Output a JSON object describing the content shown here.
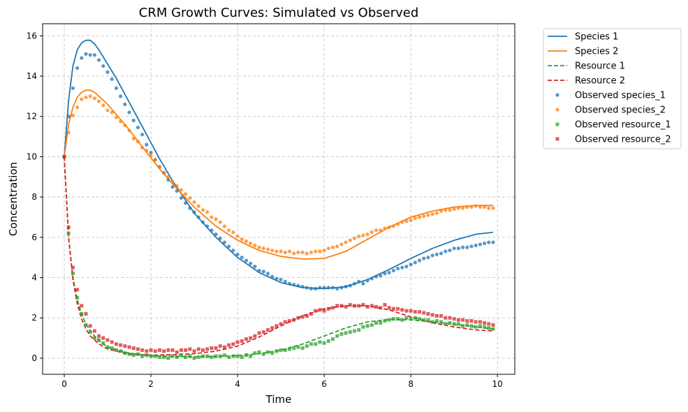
{
  "chart_data": {
    "type": "line",
    "title": "CRM Growth Curves: Simulated vs Observed",
    "xlabel": "Time",
    "ylabel": "Concentration",
    "xlim": [
      -0.5,
      10.4
    ],
    "ylim": [
      -0.8,
      16.6
    ],
    "xticks": [
      0,
      2,
      4,
      6,
      8,
      10
    ],
    "yticks": [
      0,
      2,
      4,
      6,
      8,
      10,
      12,
      14,
      16
    ],
    "grid": true,
    "legend_position": "outside-top-right",
    "series": [
      {
        "name": "Species 1",
        "kind": "line",
        "style": "solid",
        "color": "#1f77b4",
        "x": [
          0,
          0.1,
          0.2,
          0.3,
          0.4,
          0.5,
          0.6,
          0.7,
          0.8,
          1.0,
          1.2,
          1.4,
          1.6,
          1.8,
          2.0,
          2.2,
          2.5,
          3.0,
          3.5,
          4.0,
          4.5,
          5.0,
          5.5,
          6.0,
          6.5,
          7.0,
          7.5,
          8.0,
          8.5,
          9.0,
          9.5,
          9.9
        ],
        "y": [
          10,
          12.8,
          14.5,
          15.3,
          15.65,
          15.78,
          15.78,
          15.6,
          15.3,
          14.6,
          13.9,
          13.1,
          12.3,
          11.5,
          10.7,
          9.9,
          8.8,
          7.2,
          6.0,
          5.0,
          4.25,
          3.75,
          3.5,
          3.45,
          3.55,
          3.9,
          4.4,
          4.95,
          5.45,
          5.85,
          6.15,
          6.25
        ]
      },
      {
        "name": "Species 2",
        "kind": "line",
        "style": "solid",
        "color": "#ff7f0e",
        "x": [
          0,
          0.1,
          0.2,
          0.3,
          0.4,
          0.5,
          0.6,
          0.7,
          0.8,
          1.0,
          1.2,
          1.4,
          1.6,
          1.8,
          2.0,
          2.2,
          2.5,
          3.0,
          3.5,
          4.0,
          4.5,
          5.0,
          5.5,
          6.0,
          6.5,
          7.0,
          7.5,
          8.0,
          8.5,
          9.0,
          9.5,
          9.9
        ],
        "y": [
          10,
          11.6,
          12.45,
          12.95,
          13.2,
          13.3,
          13.3,
          13.2,
          13.0,
          12.6,
          12.1,
          11.6,
          11.05,
          10.5,
          9.95,
          9.4,
          8.65,
          7.5,
          6.55,
          5.85,
          5.35,
          5.05,
          4.92,
          4.95,
          5.3,
          5.9,
          6.5,
          7.0,
          7.3,
          7.5,
          7.58,
          7.58
        ]
      },
      {
        "name": "Resource 1",
        "kind": "line",
        "style": "dashed",
        "color": "#2ca02c",
        "x": [
          0,
          0.1,
          0.2,
          0.3,
          0.4,
          0.5,
          0.6,
          0.8,
          1.0,
          1.5,
          2.0,
          2.5,
          3.0,
          3.5,
          4.0,
          4.5,
          5.0,
          5.5,
          6.0,
          6.5,
          7.0,
          7.5,
          8.0,
          8.5,
          9.0,
          9.5,
          9.9
        ],
        "y": [
          10,
          6.0,
          4.0,
          2.9,
          2.2,
          1.7,
          1.35,
          0.85,
          0.55,
          0.25,
          0.12,
          0.08,
          0.07,
          0.08,
          0.13,
          0.22,
          0.4,
          0.7,
          1.1,
          1.5,
          1.8,
          1.92,
          1.9,
          1.8,
          1.68,
          1.55,
          1.45
        ]
      },
      {
        "name": "Resource 2",
        "kind": "line",
        "style": "dashed",
        "color": "#d62728",
        "x": [
          0,
          0.1,
          0.2,
          0.3,
          0.4,
          0.5,
          0.6,
          0.8,
          1.0,
          1.5,
          2.0,
          2.5,
          3.0,
          3.5,
          4.0,
          4.5,
          5.0,
          5.5,
          6.0,
          6.5,
          7.0,
          7.5,
          8.0,
          8.5,
          9.0,
          9.5,
          9.9
        ],
        "y": [
          10,
          6.0,
          3.9,
          2.7,
          1.95,
          1.45,
          1.1,
          0.7,
          0.45,
          0.2,
          0.15,
          0.17,
          0.22,
          0.35,
          0.6,
          1.05,
          1.6,
          2.1,
          2.45,
          2.6,
          2.6,
          2.4,
          2.05,
          1.75,
          1.55,
          1.4,
          1.35
        ]
      },
      {
        "name": "Observed species_1",
        "kind": "scatter",
        "marker": "circle",
        "color": "#1f77b4",
        "x": [
          0,
          0.1,
          0.2,
          0.3,
          0.4,
          0.5,
          0.6,
          0.7,
          0.8,
          0.9,
          1.0,
          1.1,
          1.2,
          1.3,
          1.4,
          1.5,
          1.6,
          1.7,
          1.8,
          1.9,
          2.0,
          2.1,
          2.2,
          2.3,
          2.4,
          2.5,
          2.6,
          2.7,
          2.8,
          2.9,
          3.0,
          3.1,
          3.2,
          3.3,
          3.4,
          3.5,
          3.6,
          3.7,
          3.8,
          3.9,
          4.0,
          4.1,
          4.2,
          4.3,
          4.4,
          4.5,
          4.6,
          4.7,
          4.8,
          4.9,
          5.0,
          5.1,
          5.2,
          5.3,
          5.4,
          5.5,
          5.6,
          5.7,
          5.8,
          5.9,
          6.0,
          6.1,
          6.2,
          6.3,
          6.4,
          6.5,
          6.6,
          6.7,
          6.8,
          6.9,
          7.0,
          7.1,
          7.2,
          7.3,
          7.4,
          7.5,
          7.6,
          7.7,
          7.8,
          7.9,
          8.0,
          8.1,
          8.2,
          8.3,
          8.4,
          8.5,
          8.6,
          8.7,
          8.8,
          8.9,
          9.0,
          9.1,
          9.2,
          9.3,
          9.4,
          9.5,
          9.6,
          9.7,
          9.8,
          9.9
        ],
        "y": [
          10.0,
          12.0,
          13.4,
          14.4,
          14.9,
          15.1,
          15.05,
          15.05,
          14.8,
          14.5,
          14.2,
          13.85,
          13.4,
          13.0,
          12.6,
          12.2,
          11.8,
          11.45,
          11.1,
          10.6,
          10.2,
          9.85,
          9.5,
          9.2,
          8.85,
          8.5,
          8.3,
          7.95,
          7.7,
          7.45,
          7.25,
          7.0,
          6.75,
          6.55,
          6.35,
          6.15,
          5.95,
          5.75,
          5.55,
          5.35,
          5.15,
          5.0,
          4.85,
          4.7,
          4.55,
          4.35,
          4.3,
          4.2,
          4.05,
          3.95,
          3.9,
          3.8,
          3.7,
          3.65,
          3.6,
          3.55,
          3.5,
          3.45,
          3.45,
          3.5,
          3.5,
          3.5,
          3.5,
          3.45,
          3.5,
          3.55,
          3.6,
          3.7,
          3.8,
          3.7,
          3.85,
          3.95,
          4.05,
          4.1,
          4.2,
          4.25,
          4.35,
          4.45,
          4.5,
          4.55,
          4.65,
          4.75,
          4.85,
          4.95,
          5.0,
          5.1,
          5.15,
          5.2,
          5.3,
          5.35,
          5.45,
          5.45,
          5.5,
          5.5,
          5.55,
          5.6,
          5.65,
          5.7,
          5.75,
          5.75
        ]
      },
      {
        "name": "Observed species_2",
        "kind": "scatter",
        "marker": "circle",
        "color": "#ff7f0e",
        "x": [
          0,
          0.1,
          0.2,
          0.3,
          0.4,
          0.5,
          0.6,
          0.7,
          0.8,
          0.9,
          1.0,
          1.1,
          1.2,
          1.3,
          1.4,
          1.5,
          1.6,
          1.7,
          1.8,
          1.9,
          2.0,
          2.1,
          2.2,
          2.3,
          2.4,
          2.5,
          2.6,
          2.7,
          2.8,
          2.9,
          3.0,
          3.1,
          3.2,
          3.3,
          3.4,
          3.5,
          3.6,
          3.7,
          3.8,
          3.9,
          4.0,
          4.1,
          4.2,
          4.3,
          4.4,
          4.5,
          4.6,
          4.7,
          4.8,
          4.9,
          5.0,
          5.1,
          5.2,
          5.3,
          5.4,
          5.5,
          5.6,
          5.7,
          5.8,
          5.9,
          6.0,
          6.1,
          6.2,
          6.3,
          6.4,
          6.5,
          6.6,
          6.7,
          6.8,
          6.9,
          7.0,
          7.1,
          7.2,
          7.3,
          7.4,
          7.5,
          7.6,
          7.7,
          7.8,
          7.9,
          8.0,
          8.1,
          8.2,
          8.3,
          8.4,
          8.5,
          8.6,
          8.7,
          8.8,
          8.9,
          9.0,
          9.1,
          9.2,
          9.3,
          9.4,
          9.5,
          9.6,
          9.7,
          9.8,
          9.9
        ],
        "y": [
          10.0,
          11.2,
          12.05,
          12.45,
          12.85,
          12.95,
          13.0,
          12.9,
          12.75,
          12.55,
          12.3,
          12.2,
          11.95,
          11.75,
          11.55,
          11.3,
          10.9,
          10.75,
          10.45,
          10.3,
          10.05,
          9.85,
          9.5,
          9.2,
          9.0,
          8.75,
          8.55,
          8.35,
          8.15,
          7.95,
          7.75,
          7.55,
          7.35,
          7.25,
          7.0,
          6.9,
          6.75,
          6.55,
          6.35,
          6.25,
          6.05,
          5.9,
          5.8,
          5.7,
          5.6,
          5.5,
          5.45,
          5.4,
          5.35,
          5.3,
          5.3,
          5.25,
          5.3,
          5.2,
          5.25,
          5.25,
          5.2,
          5.25,
          5.3,
          5.3,
          5.35,
          5.45,
          5.5,
          5.55,
          5.65,
          5.75,
          5.85,
          5.95,
          6.05,
          6.1,
          6.15,
          6.25,
          6.35,
          6.35,
          6.45,
          6.5,
          6.55,
          6.65,
          6.75,
          6.8,
          6.85,
          6.95,
          7.0,
          7.05,
          7.1,
          7.15,
          7.2,
          7.3,
          7.35,
          7.35,
          7.4,
          7.45,
          7.45,
          7.5,
          7.5,
          7.55,
          7.5,
          7.5,
          7.45,
          7.45
        ]
      },
      {
        "name": "Observed resource_1",
        "kind": "scatter",
        "marker": "square",
        "color": "#2ca02c",
        "x": [
          0,
          0.1,
          0.2,
          0.3,
          0.4,
          0.5,
          0.6,
          0.7,
          0.8,
          0.9,
          1.0,
          1.1,
          1.2,
          1.3,
          1.4,
          1.5,
          1.6,
          1.7,
          1.8,
          1.9,
          2.0,
          2.1,
          2.2,
          2.3,
          2.4,
          2.5,
          2.6,
          2.7,
          2.8,
          2.9,
          3.0,
          3.1,
          3.2,
          3.3,
          3.4,
          3.5,
          3.6,
          3.7,
          3.8,
          3.9,
          4.0,
          4.1,
          4.2,
          4.3,
          4.4,
          4.5,
          4.6,
          4.7,
          4.8,
          4.9,
          5.0,
          5.1,
          5.2,
          5.3,
          5.4,
          5.5,
          5.6,
          5.7,
          5.8,
          5.9,
          6.0,
          6.1,
          6.2,
          6.3,
          6.4,
          6.5,
          6.6,
          6.7,
          6.8,
          6.9,
          7.0,
          7.1,
          7.2,
          7.3,
          7.4,
          7.5,
          7.6,
          7.7,
          7.8,
          7.9,
          8.0,
          8.1,
          8.2,
          8.3,
          8.4,
          8.5,
          8.6,
          8.7,
          8.8,
          8.9,
          9.0,
          9.1,
          9.2,
          9.3,
          9.4,
          9.5,
          9.6,
          9.7,
          9.8,
          9.9
        ],
        "y": [
          10.0,
          6.2,
          4.2,
          3.0,
          2.2,
          1.65,
          1.3,
          1.0,
          0.9,
          0.75,
          0.55,
          0.5,
          0.4,
          0.35,
          0.25,
          0.2,
          0.15,
          0.2,
          0.1,
          0.15,
          0.1,
          0.1,
          0.05,
          0.05,
          0.0,
          0.1,
          0.05,
          0.15,
          0.05,
          0.1,
          0.0,
          0.05,
          0.1,
          0.1,
          0.05,
          0.1,
          0.1,
          0.15,
          0.05,
          0.1,
          0.1,
          0.05,
          0.15,
          0.1,
          0.25,
          0.3,
          0.2,
          0.3,
          0.25,
          0.35,
          0.4,
          0.4,
          0.45,
          0.5,
          0.55,
          0.5,
          0.6,
          0.7,
          0.7,
          0.8,
          0.75,
          0.85,
          0.95,
          1.1,
          1.2,
          1.25,
          1.3,
          1.35,
          1.4,
          1.55,
          1.6,
          1.65,
          1.75,
          1.75,
          1.85,
          1.9,
          1.95,
          1.95,
          1.9,
          2.0,
          1.95,
          2.0,
          1.95,
          1.9,
          1.9,
          1.8,
          1.85,
          1.8,
          1.7,
          1.75,
          1.7,
          1.7,
          1.6,
          1.65,
          1.6,
          1.55,
          1.6,
          1.55,
          1.5,
          1.45
        ]
      },
      {
        "name": "Observed resource_2",
        "kind": "scatter",
        "marker": "square",
        "color": "#d62728",
        "x": [
          0,
          0.1,
          0.2,
          0.3,
          0.4,
          0.5,
          0.6,
          0.7,
          0.8,
          0.9,
          1.0,
          1.1,
          1.2,
          1.3,
          1.4,
          1.5,
          1.6,
          1.7,
          1.8,
          1.9,
          2.0,
          2.1,
          2.2,
          2.3,
          2.4,
          2.5,
          2.6,
          2.7,
          2.8,
          2.9,
          3.0,
          3.1,
          3.2,
          3.3,
          3.4,
          3.5,
          3.6,
          3.7,
          3.8,
          3.9,
          4.0,
          4.1,
          4.2,
          4.3,
          4.4,
          4.5,
          4.6,
          4.7,
          4.8,
          4.9,
          5.0,
          5.1,
          5.2,
          5.3,
          5.4,
          5.5,
          5.6,
          5.7,
          5.8,
          5.9,
          6.0,
          6.1,
          6.2,
          6.3,
          6.4,
          6.5,
          6.6,
          6.7,
          6.8,
          6.9,
          7.0,
          7.1,
          7.2,
          7.3,
          7.4,
          7.5,
          7.6,
          7.7,
          7.8,
          7.9,
          8.0,
          8.1,
          8.2,
          8.3,
          8.4,
          8.5,
          8.6,
          8.7,
          8.8,
          8.9,
          9.0,
          9.1,
          9.2,
          9.3,
          9.4,
          9.5,
          9.6,
          9.7,
          9.8,
          9.9
        ],
        "y": [
          10.0,
          6.5,
          4.5,
          3.4,
          2.6,
          2.2,
          1.6,
          1.35,
          1.1,
          1.0,
          0.9,
          0.8,
          0.7,
          0.65,
          0.6,
          0.55,
          0.5,
          0.45,
          0.4,
          0.35,
          0.4,
          0.35,
          0.4,
          0.35,
          0.4,
          0.4,
          0.3,
          0.4,
          0.4,
          0.45,
          0.35,
          0.45,
          0.4,
          0.45,
          0.5,
          0.5,
          0.6,
          0.55,
          0.65,
          0.7,
          0.8,
          0.85,
          0.95,
          1.0,
          1.1,
          1.25,
          1.3,
          1.4,
          1.5,
          1.6,
          1.7,
          1.8,
          1.85,
          1.9,
          2.0,
          2.05,
          2.1,
          2.2,
          2.35,
          2.4,
          2.35,
          2.45,
          2.5,
          2.6,
          2.6,
          2.55,
          2.65,
          2.6,
          2.6,
          2.65,
          2.55,
          2.6,
          2.55,
          2.5,
          2.65,
          2.5,
          2.45,
          2.45,
          2.4,
          2.35,
          2.35,
          2.3,
          2.3,
          2.25,
          2.2,
          2.15,
          2.1,
          2.1,
          2.0,
          2.0,
          1.95,
          1.9,
          1.9,
          1.85,
          1.85,
          1.8,
          1.8,
          1.75,
          1.7,
          1.65
        ]
      }
    ]
  }
}
